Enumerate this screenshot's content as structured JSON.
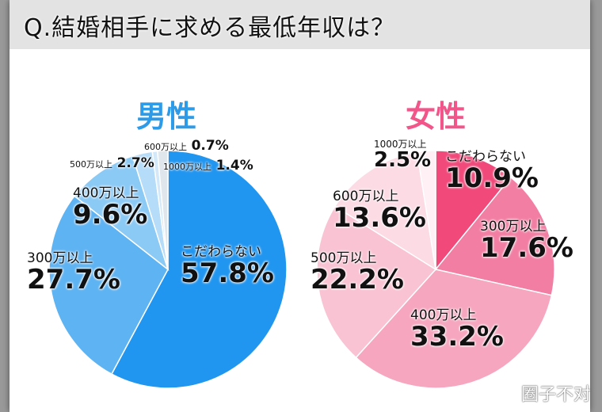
{
  "chart_data": [
    {
      "type": "pie",
      "title": "男性",
      "title_color": "#2d9be8",
      "labels": [
        "こだわらない",
        "300万以上",
        "400万以上",
        "500万以上",
        "600万以上",
        "1000万以上"
      ],
      "values": [
        57.8,
        27.7,
        9.6,
        2.7,
        0.7,
        1.4
      ],
      "value_labels": [
        "57.8%",
        "27.7%",
        "9.6%",
        "2.7%",
        "0.7%",
        "1.4%"
      ],
      "colors": [
        "#2196f0",
        "#5eb3f2",
        "#8ccaf6",
        "#b5dcf8",
        "#d3e9f9",
        "#dfe6ec"
      ]
    },
    {
      "type": "pie",
      "title": "女性",
      "title_color": "#f2558a",
      "labels": [
        "こだわらない",
        "300万以上",
        "400万以上",
        "500万以上",
        "600万以上",
        "1000万以上"
      ],
      "values": [
        10.9,
        17.6,
        33.2,
        22.2,
        13.6,
        2.5
      ],
      "value_labels": [
        "10.9%",
        "17.6%",
        "33.2%",
        "22.2%",
        "13.6%",
        "2.5%"
      ],
      "colors": [
        "#f0497a",
        "#f27ea3",
        "#f6a6bf",
        "#f9c3d3",
        "#fcdbe5",
        "#fef0f4"
      ]
    }
  ],
  "header": {
    "title": "Q.結婚相手に求める最低年収は？"
  },
  "watermark": "圈子不对"
}
